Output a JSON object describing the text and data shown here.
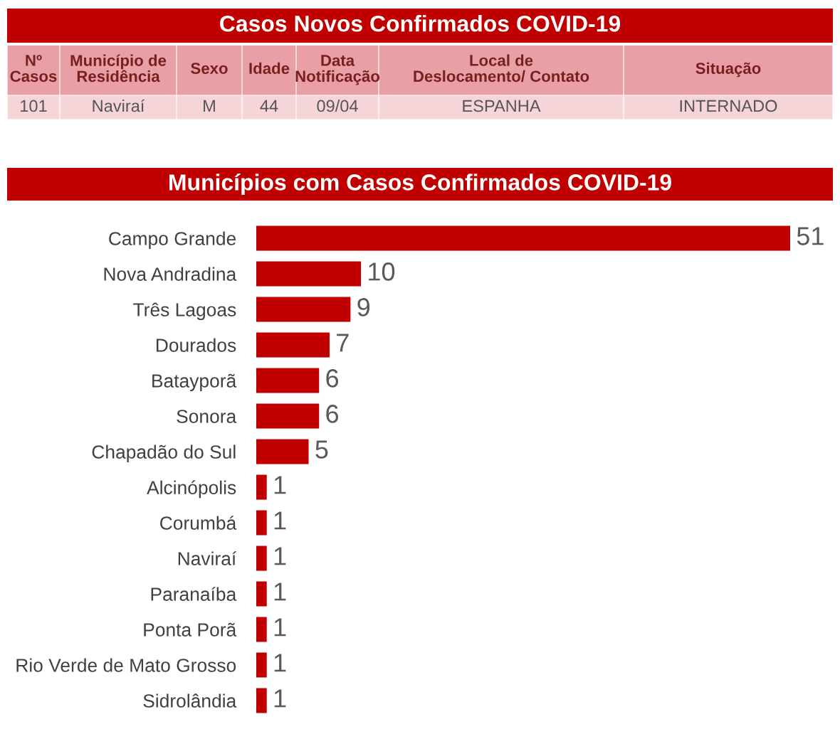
{
  "chart_data": [
    {
      "type": "other",
      "title": "Casos Novos Confirmados COVID-19",
      "categories": [
        "Nº\nCasos",
        "Município de\nResidência",
        "Sexo",
        "Idade",
        "Data\nNotificação",
        "Local de\nDeslocamento/ Contato",
        "Situação"
      ],
      "annotations": [
        "101",
        "Naviraí",
        "M",
        "44",
        "09/04",
        "ESPANHA",
        "INTERNADO"
      ]
    },
    {
      "type": "bar",
      "orientation": "horizontal",
      "title": "Municípios com Casos Confirmados COVID-19",
      "categories": [
        "Campo Grande",
        "Nova Andradina",
        "Três Lagoas",
        "Dourados",
        "Batayporã",
        "Sonora",
        "Chapadão do Sul",
        "Alcinópolis",
        "Corumbá",
        "Naviraí",
        "Paranaíba",
        "Ponta Porã",
        "Rio Verde de Mato Grosso",
        "Sidrolândia"
      ],
      "values": [
        51,
        10,
        9,
        7,
        6,
        6,
        5,
        1,
        1,
        1,
        1,
        1,
        1,
        1
      ],
      "color": "#c00000",
      "data_labels": true
    }
  ]
}
